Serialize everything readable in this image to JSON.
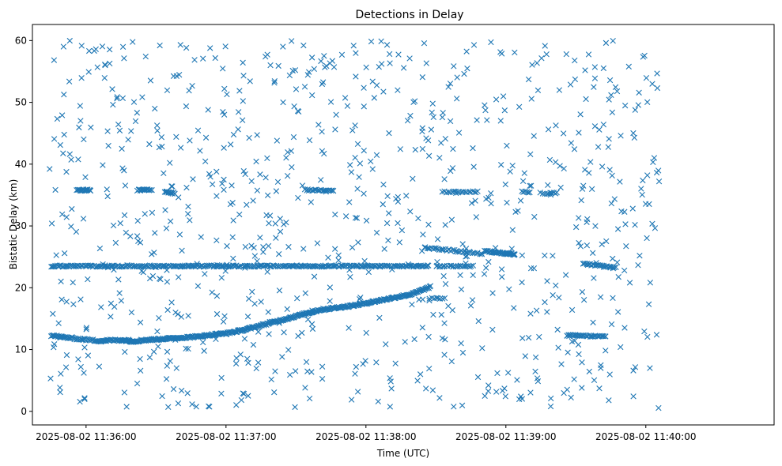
{
  "chart_data": {
    "type": "scatter",
    "title": "Detections in Delay",
    "xlabel": "Time (UTC)",
    "ylabel": "Bistatic Delay (km)",
    "x_ticks": [
      "2025-08-02 11:36:00",
      "2025-08-02 11:37:00",
      "2025-08-02 11:38:00",
      "2025-08-02 11:39:00",
      "2025-08-02 11:40:00"
    ],
    "y_ticks": [
      0,
      10,
      20,
      30,
      40,
      50,
      60
    ],
    "xlim": [
      "2025-08-02 11:35:37",
      "2025-08-02 11:40:55"
    ],
    "ylim": [
      -2.2,
      62.6
    ],
    "marker": "x",
    "color": "#1f77b4",
    "grid": false,
    "series": [
      {
        "x_unit": "seconds after 2025-08-02 11:35:00",
        "track_segments": [
          {
            "x_start": 45,
            "x_end": 207,
            "y_start": 23.5,
            "y_end": 23.5,
            "points": 330
          },
          {
            "x_start": 210,
            "x_end": 226,
            "y_start": 23.5,
            "y_end": 23.5,
            "points": 26
          },
          {
            "x_start": 205,
            "x_end": 230,
            "y_start": 26.5,
            "y_end": 25.5,
            "points": 40
          },
          {
            "x_start": 231,
            "x_end": 244,
            "y_start": 25.9,
            "y_end": 25.4,
            "points": 45
          },
          {
            "x_start": 273,
            "x_end": 287,
            "y_start": 23.9,
            "y_end": 23.2,
            "points": 30
          },
          {
            "x_start": 56,
            "x_end": 62,
            "y_start": 35.8,
            "y_end": 35.8,
            "points": 18
          },
          {
            "x_start": 82,
            "x_end": 88,
            "y_start": 35.8,
            "y_end": 35.8,
            "points": 16
          },
          {
            "x_start": 94,
            "x_end": 98,
            "y_start": 35.5,
            "y_end": 35.3,
            "points": 14
          },
          {
            "x_start": 154,
            "x_end": 166,
            "y_start": 35.8,
            "y_end": 35.8,
            "points": 22
          },
          {
            "x_start": 213,
            "x_end": 228,
            "y_start": 35.5,
            "y_end": 35.5,
            "points": 20
          },
          {
            "x_start": 247,
            "x_end": 250,
            "y_start": 35.5,
            "y_end": 35.5,
            "points": 6
          },
          {
            "x_start": 255,
            "x_end": 262,
            "y_start": 35.3,
            "y_end": 35.3,
            "points": 10
          },
          {
            "x_start": 266,
            "x_end": 283,
            "y_start": 12.3,
            "y_end": 12.1,
            "points": 40
          },
          {
            "x_start": 207,
            "x_end": 214,
            "y_start": 18.3,
            "y_end": 18.3,
            "points": 8
          }
        ],
        "curve_points": [
          [
            45,
            12.3
          ],
          [
            50,
            12.0
          ],
          [
            55,
            11.8
          ],
          [
            60,
            11.6
          ],
          [
            66,
            11.4
          ],
          [
            70,
            11.5
          ],
          [
            75,
            11.5
          ],
          [
            78,
            11.5
          ],
          [
            80,
            11.3
          ],
          [
            84,
            11.5
          ],
          [
            88,
            11.6
          ],
          [
            92,
            11.7
          ],
          [
            96,
            11.8
          ],
          [
            100,
            11.9
          ],
          [
            104,
            12.0
          ],
          [
            108,
            12.1
          ],
          [
            112,
            12.3
          ],
          [
            116,
            12.5
          ],
          [
            120,
            12.6
          ],
          [
            124,
            12.9
          ],
          [
            128,
            13.2
          ],
          [
            132,
            13.6
          ],
          [
            136,
            14.0
          ],
          [
            140,
            14.4
          ],
          [
            144,
            14.8
          ],
          [
            148,
            15.2
          ],
          [
            152,
            15.6
          ],
          [
            156,
            16.0
          ],
          [
            160,
            16.4
          ],
          [
            164,
            16.6
          ],
          [
            168,
            16.8
          ],
          [
            172,
            17.0
          ],
          [
            176,
            17.2
          ],
          [
            180,
            17.5
          ],
          [
            184,
            17.8
          ],
          [
            188,
            18.1
          ],
          [
            192,
            18.4
          ],
          [
            196,
            18.7
          ],
          [
            200,
            19.0
          ],
          [
            204,
            19.6
          ],
          [
            208,
            20.2
          ]
        ],
        "scatter_count": 850
      }
    ]
  }
}
